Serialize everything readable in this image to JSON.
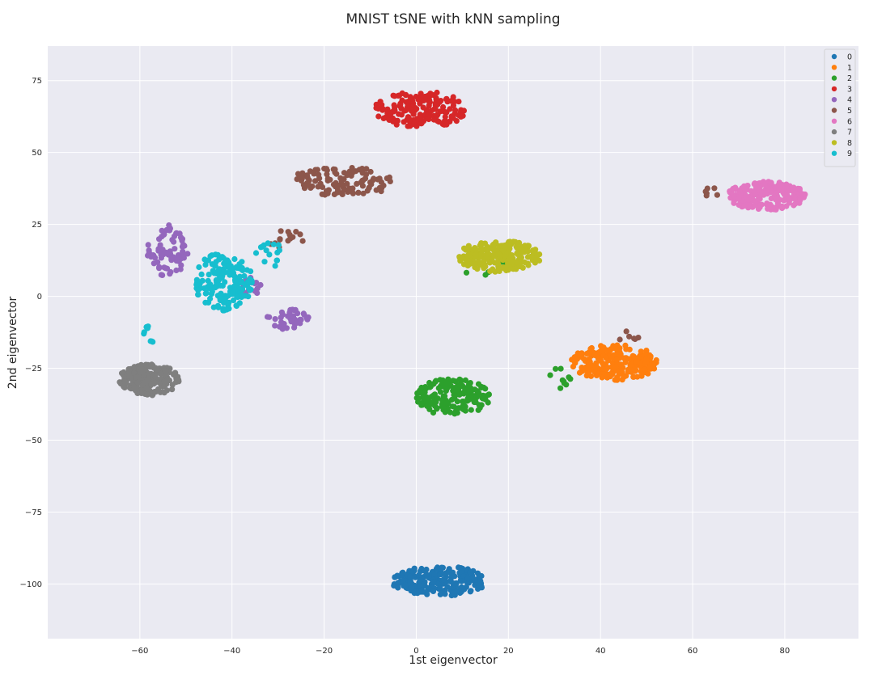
{
  "chart_data": {
    "type": "scatter",
    "title": "MNIST tSNE with kNN sampling",
    "xlabel": "1st eigenvector",
    "ylabel": "2nd eigenvector",
    "xlim": [
      -80,
      96
    ],
    "ylim": [
      -119,
      87
    ],
    "xticks": [
      -60,
      -40,
      -20,
      0,
      20,
      40,
      60,
      80
    ],
    "yticks": [
      -100,
      -75,
      -50,
      -25,
      0,
      25,
      50,
      75
    ],
    "grid": true,
    "legend_position": "top-right",
    "series": [
      {
        "name": "0",
        "color": "#1f77b4",
        "clusters": [
          {
            "center": [
              5,
              -99
            ],
            "spread": [
              10.5,
              5.2
            ],
            "count": 200
          }
        ]
      },
      {
        "name": "1",
        "color": "#ff7f0e",
        "clusters": [
          {
            "center": [
              43,
              -23
            ],
            "spread": [
              9.5,
              6.2
            ],
            "count": 220
          }
        ]
      },
      {
        "name": "2",
        "color": "#2ca02c",
        "clusters": [
          {
            "center": [
              8,
              -35
            ],
            "spread": [
              8,
              6.5
            ],
            "count": 170
          },
          {
            "center": [
              31,
              -28
            ],
            "spread": [
              2.5,
              4
            ],
            "count": 10
          },
          {
            "center": [
              14,
              10
            ],
            "spread": [
              8,
              3
            ],
            "count": 6
          }
        ]
      },
      {
        "name": "3",
        "color": "#d62728",
        "clusters": [
          {
            "center": [
              1,
              65
            ],
            "spread": [
              10,
              6.5
            ],
            "count": 170
          }
        ]
      },
      {
        "name": "4",
        "color": "#9467bd",
        "clusters": [
          {
            "center": [
              -54,
              16
            ],
            "spread": [
              4.5,
              9
            ],
            "count": 70
          },
          {
            "center": [
              -28,
              -8
            ],
            "spread": [
              5,
              3.5
            ],
            "count": 40
          },
          {
            "center": [
              -36,
              4
            ],
            "spread": [
              3,
              4
            ],
            "count": 12
          }
        ]
      },
      {
        "name": "5",
        "color": "#8c564b",
        "clusters": [
          {
            "center": [
              -16,
              40
            ],
            "spread": [
              11,
              5.5
            ],
            "count": 110
          },
          {
            "center": [
              -28,
              20
            ],
            "spread": [
              4,
              4
            ],
            "count": 14
          },
          {
            "center": [
              64,
              36
            ],
            "spread": [
              1.5,
              2
            ],
            "count": 6
          },
          {
            "center": [
              46,
              -14
            ],
            "spread": [
              3,
              2
            ],
            "count": 6
          }
        ]
      },
      {
        "name": "6",
        "color": "#e377c2",
        "clusters": [
          {
            "center": [
              76,
              35
            ],
            "spread": [
              8.5,
              5
            ],
            "count": 200
          }
        ]
      },
      {
        "name": "7",
        "color": "#7f7f7f",
        "clusters": [
          {
            "center": [
              -58,
              -29
            ],
            "spread": [
              6.5,
              5.5
            ],
            "count": 190
          }
        ]
      },
      {
        "name": "8",
        "color": "#bcbd22",
        "clusters": [
          {
            "center": [
              18,
              14
            ],
            "spread": [
              9.5,
              5.5
            ],
            "count": 220
          }
        ]
      },
      {
        "name": "9",
        "color": "#17becf",
        "clusters": [
          {
            "center": [
              -42,
              5
            ],
            "spread": [
              6.5,
              10
            ],
            "count": 170
          },
          {
            "center": [
              -58,
              -14
            ],
            "spread": [
              1.5,
              4
            ],
            "count": 8
          },
          {
            "center": [
              -32,
              15
            ],
            "spread": [
              3,
              5
            ],
            "count": 15
          }
        ]
      }
    ]
  }
}
